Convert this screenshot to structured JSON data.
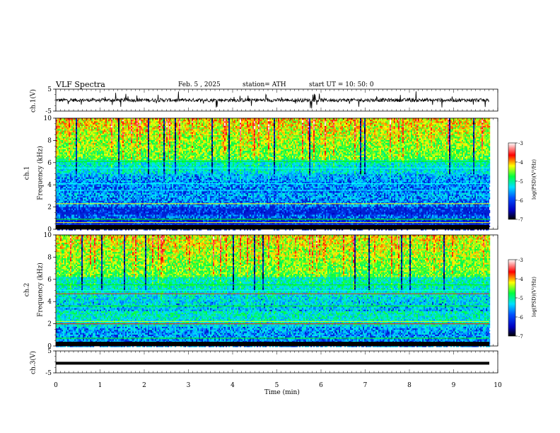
{
  "header": {
    "title": "VLF  Spectra",
    "date": "Feb. 5  , 2025",
    "station": "station= ATH",
    "start": "start  UT  =    10: 50: 0"
  },
  "chart_data": [
    {
      "type": "line",
      "name": "ch1-waveform",
      "ylabel": "ch.1(V)",
      "ylim": [
        -5,
        5
      ],
      "yticks": [
        "5",
        "-5"
      ],
      "xlim": [
        0,
        10
      ],
      "note_series": "noisy waveform around 0 with frequent spikes"
    },
    {
      "type": "heatmap",
      "name": "ch1-spectrogram",
      "ylabel_top": "ch.1",
      "ylabel": "Frequency  (kHz)",
      "ylim": [
        0,
        10
      ],
      "yticks": [
        "0",
        "2",
        "4",
        "6",
        "8",
        "10"
      ],
      "xlim": [
        0,
        10
      ],
      "colorbar": {
        "label": "log(PSD)(V²/Hz)",
        "range": [
          -7,
          -3
        ],
        "ticks": [
          "-3",
          "-4",
          "-5",
          "-6",
          "-7"
        ]
      }
    },
    {
      "type": "heatmap",
      "name": "ch2-spectrogram",
      "ylabel_top": "ch.2",
      "ylabel": "Frequency  (kHz)",
      "ylim": [
        0,
        10
      ],
      "yticks": [
        "0",
        "2",
        "4",
        "6",
        "8",
        "10"
      ],
      "xlim": [
        0,
        10
      ],
      "colorbar": {
        "label": "log(PSD)(V²/Hz)",
        "range": [
          -7,
          -3
        ],
        "ticks": [
          "-3",
          "-4",
          "-5",
          "-6",
          "-7"
        ]
      }
    },
    {
      "type": "line",
      "name": "ch3-waveform",
      "ylabel": "ch.3(V)",
      "ylim": [
        -5,
        5
      ],
      "yticks": [
        "5",
        "-5"
      ],
      "xlim": [
        0,
        10
      ],
      "xlabel": "Time  (min)",
      "xticks": [
        "0",
        "1",
        "2",
        "3",
        "4",
        "5",
        "6",
        "7",
        "8",
        "9",
        "10"
      ],
      "note_series": "flat thick trace near -2"
    }
  ],
  "colors": {
    "axis": "#000000",
    "background": "#ffffff",
    "colormap": [
      "#000000",
      "#0000ff",
      "#00ffff",
      "#00ff00",
      "#ffff00",
      "#ff0000",
      "#ffffff"
    ]
  }
}
